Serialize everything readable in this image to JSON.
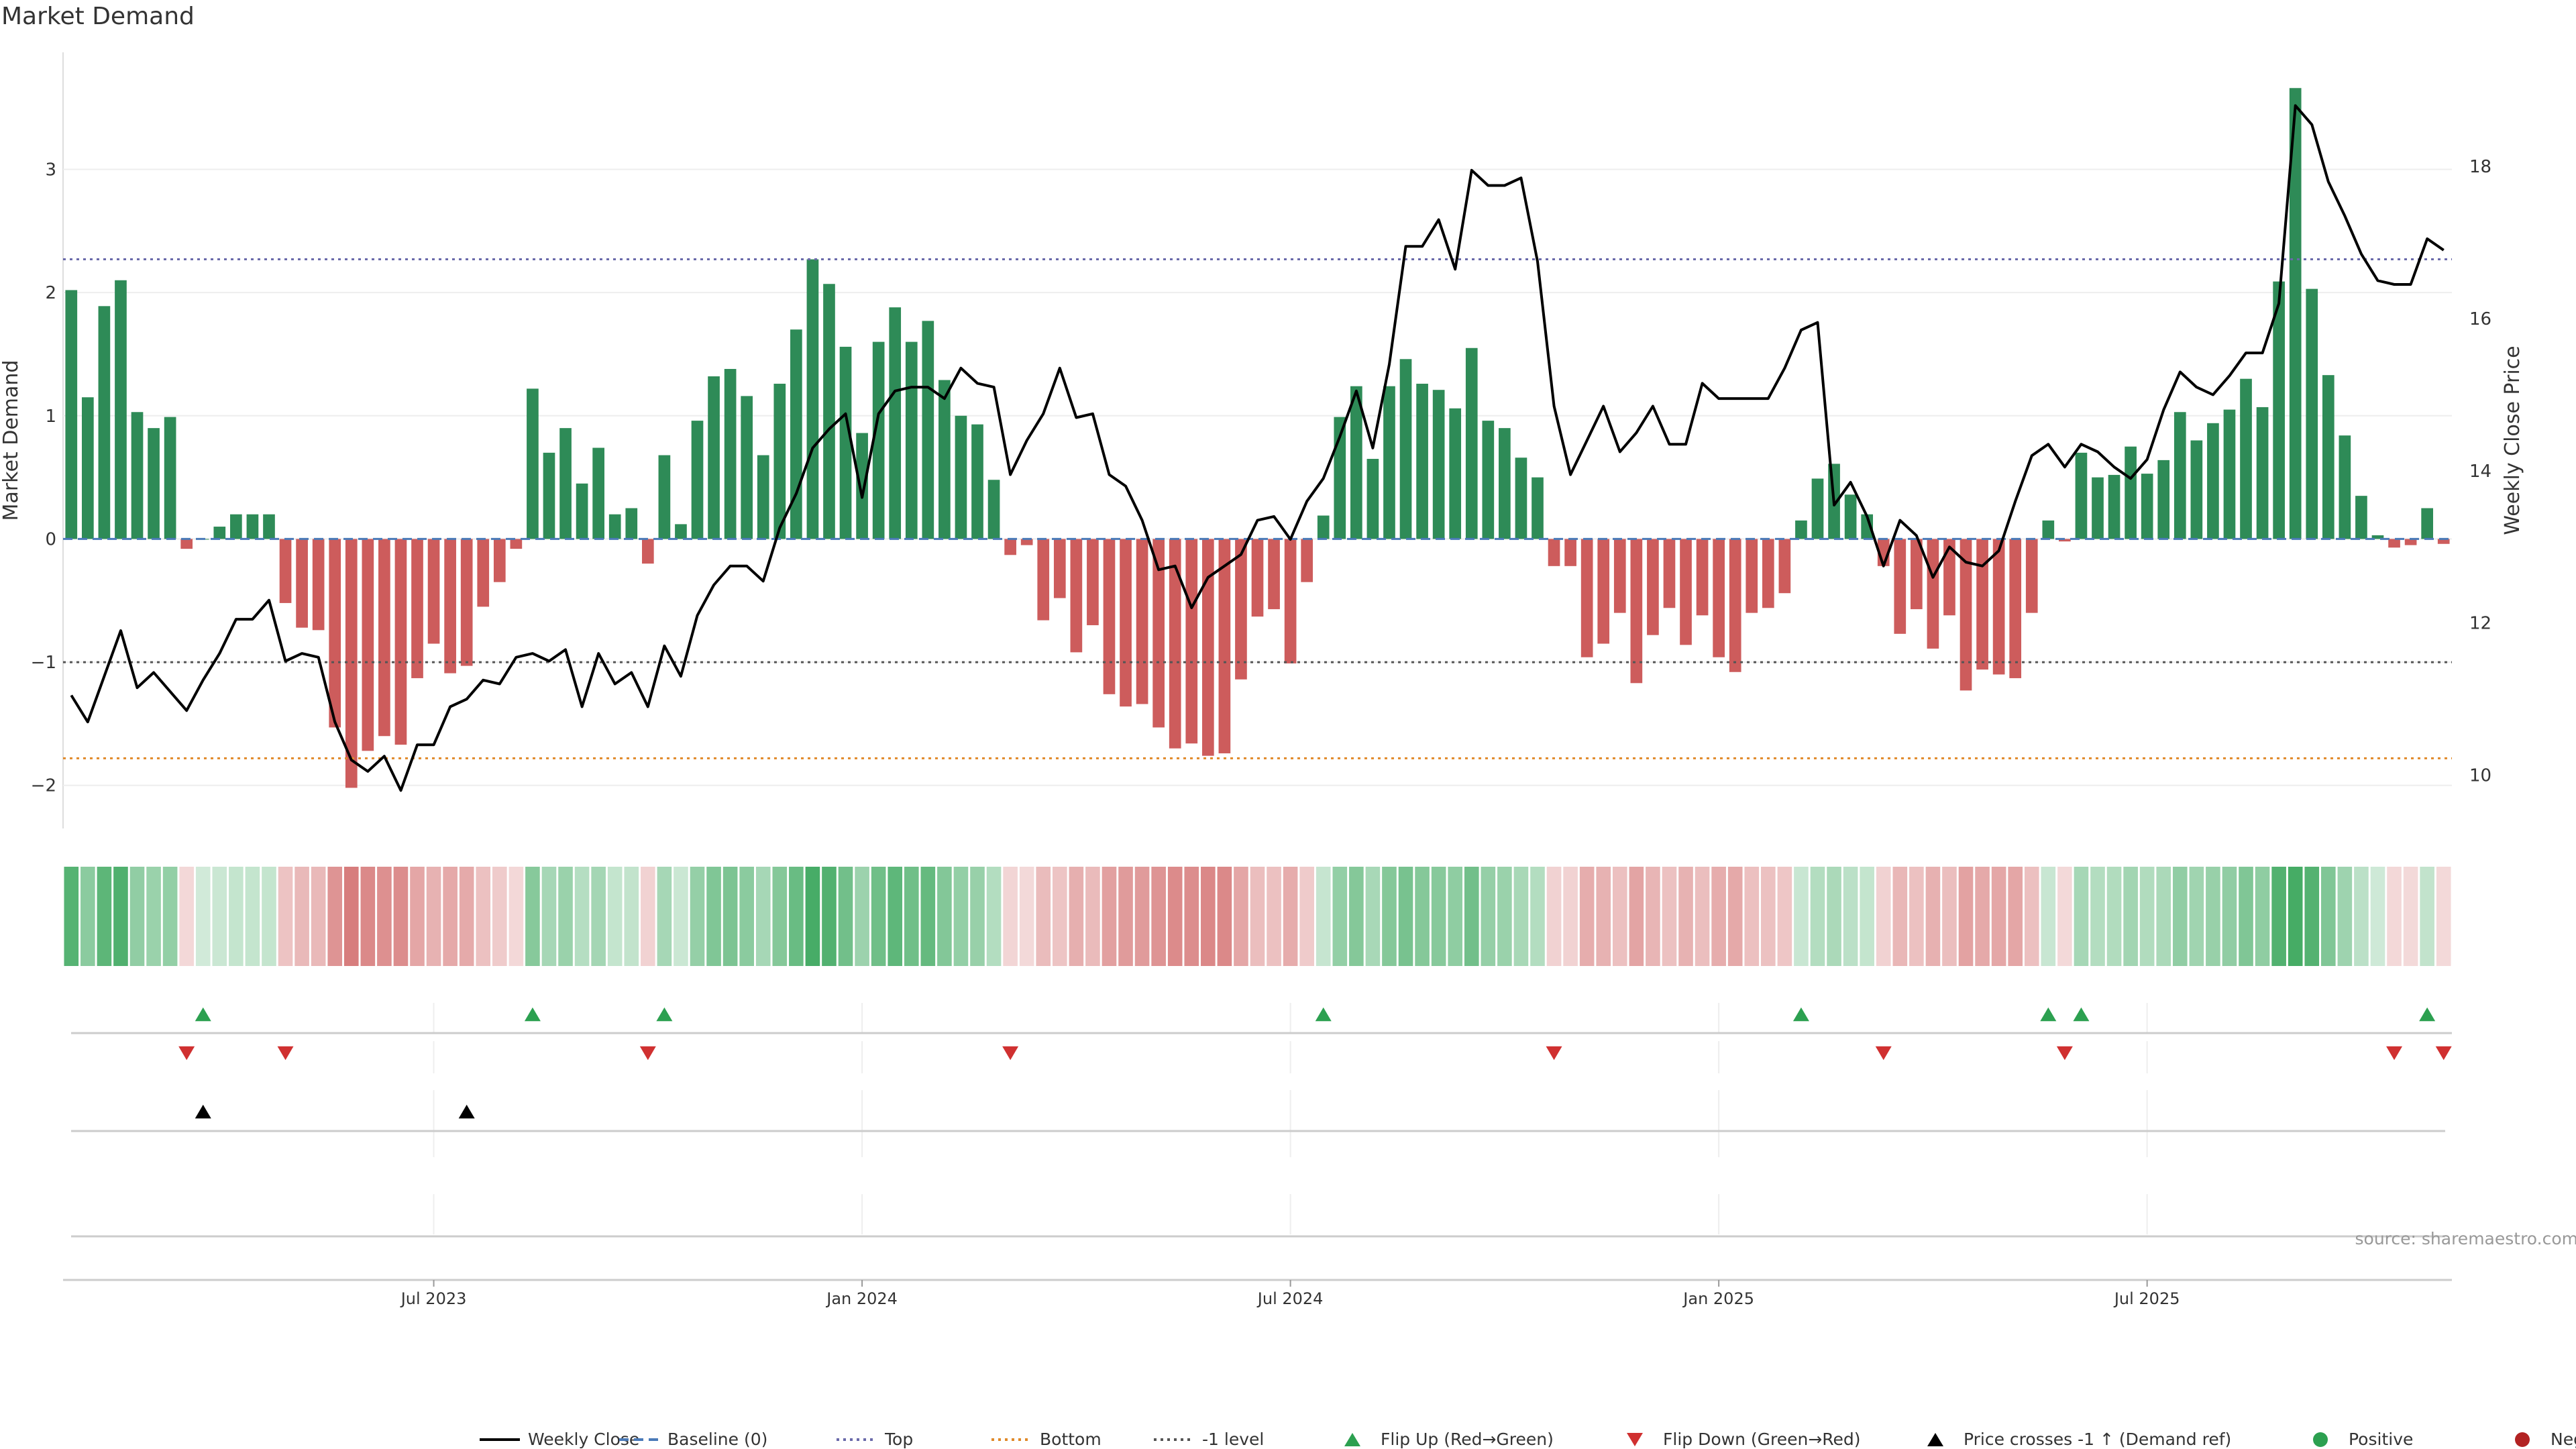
{
  "chart_data": {
    "type": "bar",
    "title": "Market Demand",
    "ylabel": "Market Demand",
    "y2label": "Weekly Close Price",
    "ylim": [
      -2.35,
      3.95
    ],
    "y2lim": [
      9.3,
      19.5
    ],
    "yticks": [
      -2,
      -1,
      0,
      1,
      2,
      3
    ],
    "y2ticks": [
      10,
      12,
      14,
      16,
      18
    ],
    "reference_lines": {
      "top": 2.27,
      "bottom": -1.78,
      "minus_one": -1.0
    },
    "x_ticks": [
      {
        "label": "Jul 2023",
        "week": 22
      },
      {
        "label": "Jan 2024",
        "week": 48
      },
      {
        "label": "Jul 2024",
        "week": 74
      },
      {
        "label": "Jan 2025",
        "week": 100
      },
      {
        "label": "Jul 2025",
        "week": 126
      }
    ],
    "source_note": "source: sharemaestro.com",
    "demand": [
      2.02,
      1.15,
      1.89,
      2.1,
      1.03,
      0.9,
      0.99,
      -0.08,
      0.0,
      0.1,
      0.2,
      0.2,
      0.2,
      -0.52,
      -0.72,
      -0.74,
      -1.53,
      -2.02,
      -1.72,
      -1.6,
      -1.67,
      -1.13,
      -0.85,
      -1.09,
      -1.03,
      -0.55,
      -0.35,
      -0.08,
      1.22,
      0.7,
      0.9,
      0.45,
      0.74,
      0.2,
      0.25,
      -0.2,
      0.68,
      0.12,
      0.96,
      1.32,
      1.38,
      1.16,
      0.68,
      1.26,
      1.7,
      2.27,
      2.07,
      1.56,
      0.86,
      1.6,
      1.88,
      1.6,
      1.77,
      1.29,
      1.0,
      0.93,
      0.48,
      -0.13,
      -0.05,
      -0.66,
      -0.48,
      -0.92,
      -0.7,
      -1.26,
      -1.36,
      -1.34,
      -1.53,
      -1.7,
      -1.66,
      -1.76,
      -1.74,
      -1.14,
      -0.63,
      -0.57,
      -1.01,
      -0.35,
      0.19,
      0.99,
      1.24,
      0.65,
      1.24,
      1.46,
      1.26,
      1.21,
      1.06,
      1.55,
      0.96,
      0.9,
      0.66,
      0.5,
      -0.22,
      -0.22,
      -0.96,
      -0.85,
      -0.6,
      -1.17,
      -0.78,
      -0.56,
      -0.86,
      -0.62,
      -0.96,
      -1.08,
      -0.6,
      -0.56,
      -0.44,
      0.15,
      0.49,
      0.61,
      0.36,
      0.2,
      -0.22,
      -0.77,
      -0.57,
      -0.89,
      -0.62,
      -1.23,
      -1.06,
      -1.1,
      -1.13,
      -0.6,
      0.15,
      -0.02,
      0.7,
      0.5,
      0.52,
      0.75,
      0.53,
      0.64,
      1.03,
      0.8,
      0.94,
      1.05,
      1.3,
      1.07,
      2.09,
      3.66,
      2.03,
      1.33,
      0.84,
      0.35,
      0.03,
      -0.07,
      -0.05,
      0.25,
      -0.04
    ],
    "price": [
      11.05,
      10.7,
      11.3,
      11.9,
      11.15,
      11.35,
      11.1,
      10.85,
      11.25,
      11.6,
      12.05,
      12.05,
      12.3,
      11.5,
      11.6,
      11.55,
      10.7,
      10.2,
      10.05,
      10.25,
      9.8,
      10.4,
      10.4,
      10.9,
      11.0,
      11.25,
      11.2,
      11.55,
      11.6,
      11.5,
      11.65,
      10.9,
      11.6,
      11.2,
      11.35,
      10.9,
      11.7,
      11.3,
      12.1,
      12.5,
      12.75,
      12.75,
      12.55,
      13.25,
      13.7,
      14.3,
      14.55,
      14.75,
      13.65,
      14.75,
      15.05,
      15.1,
      15.1,
      14.95,
      15.35,
      15.15,
      15.1,
      13.95,
      14.4,
      14.75,
      15.35,
      14.7,
      14.75,
      13.95,
      13.8,
      13.35,
      12.7,
      12.75,
      12.2,
      12.6,
      12.75,
      12.9,
      13.35,
      13.4,
      13.1,
      13.6,
      13.9,
      14.45,
      15.05,
      14.3,
      15.4,
      16.95,
      16.95,
      17.3,
      16.65,
      17.95,
      17.75,
      17.75,
      17.85,
      16.75,
      14.85,
      13.95,
      14.4,
      14.85,
      14.25,
      14.5,
      14.85,
      14.35,
      14.35,
      15.15,
      14.95,
      14.95,
      14.95,
      14.95,
      15.35,
      15.85,
      15.95,
      13.55,
      13.85,
      13.4,
      12.75,
      13.35,
      13.15,
      12.6,
      13.0,
      12.8,
      12.75,
      12.95,
      13.6,
      14.2,
      14.35,
      14.05,
      14.35,
      14.25,
      14.05,
      13.9,
      14.15,
      14.8,
      15.3,
      15.1,
      15.0,
      15.25,
      15.55,
      15.55,
      16.2,
      18.8,
      18.55,
      17.8,
      17.35,
      16.85,
      16.5,
      16.45,
      16.45,
      17.05,
      16.9
    ],
    "legend": [
      {
        "label": "Weekly Close",
        "kind": "line",
        "color": "#000000"
      },
      {
        "label": "Baseline (0)",
        "kind": "dash",
        "color": "#4a7ab8"
      },
      {
        "label": "Top",
        "kind": "dot",
        "color": "#6a6aaa"
      },
      {
        "label": "Bottom",
        "kind": "dot",
        "color": "#e08a2a"
      },
      {
        "label": "-1 level",
        "kind": "dot",
        "color": "#555555"
      },
      {
        "label": "Flip Up (Red→Green)",
        "kind": "tri-up",
        "color": "#2ca050"
      },
      {
        "label": "Flip Down (Green→Red)",
        "kind": "tri-down",
        "color": "#d03030"
      },
      {
        "label": "Price crosses -1 ↑ (Demand ref)",
        "kind": "tri-up",
        "color": "#000000"
      },
      {
        "label": "Positive",
        "kind": "circle",
        "color": "#2ca050"
      },
      {
        "label": "Negative",
        "kind": "circle",
        "color": "#b22222"
      }
    ],
    "colors": {
      "positive": "#2e8b57",
      "negative": "#cd5c5c",
      "price_line": "#000000",
      "top_line": "#6a6aaa",
      "bottom_line": "#e08a2a",
      "minus_one_line": "#555555",
      "baseline": "#4a7ab8",
      "heat_pos": "#2ca050",
      "heat_neg": "#cd5c5c",
      "flip_up": "#2ca050",
      "flip_down": "#d03030",
      "cross_marker": "#000000"
    }
  }
}
